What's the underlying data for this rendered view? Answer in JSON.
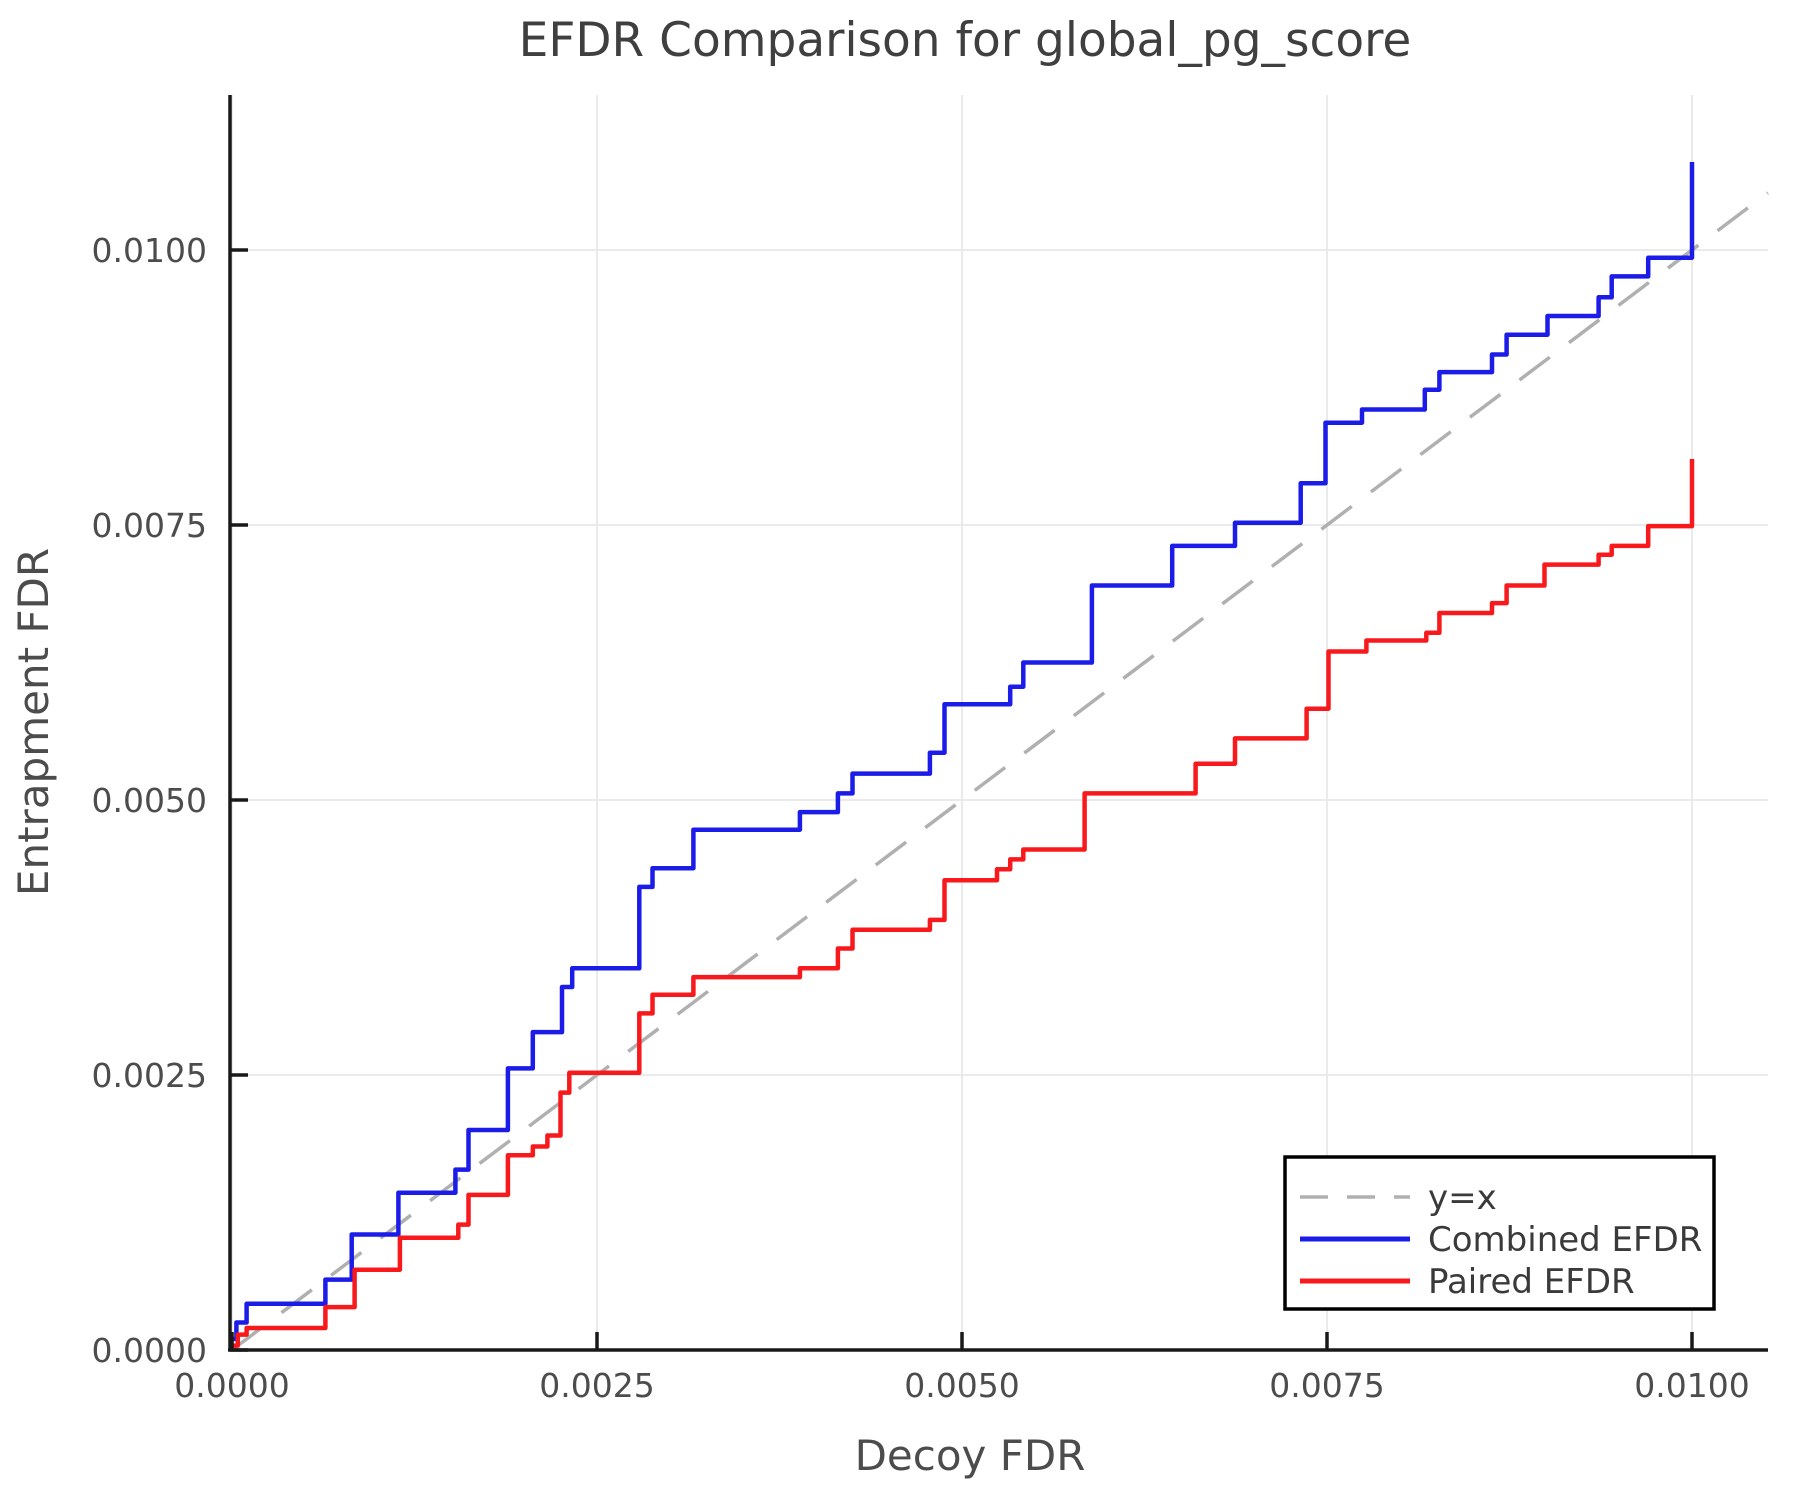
{
  "title": "EFDR Comparison for global_pg_score",
  "chart_data": {
    "type": "line",
    "subtype": "step-comparison",
    "title": "EFDR Comparison for global_pg_score",
    "xlabel": "Decoy FDR",
    "ylabel": "Entrapment FDR",
    "xlim": [
      0.0,
      0.01052
    ],
    "ylim": [
      0.0,
      0.0114
    ],
    "grid": "on",
    "x_ticks": {
      "values": [
        0.0,
        0.0025,
        0.005,
        0.0075,
        0.01
      ],
      "labels": [
        "0.0000",
        "0.0025",
        "0.0050",
        "0.0075",
        "0.0100"
      ]
    },
    "y_ticks": {
      "values": [
        0.0,
        0.0025,
        0.005,
        0.0075,
        0.01
      ],
      "labels": [
        "0.0000",
        "0.0025",
        "0.0050",
        "0.0075",
        "0.0100"
      ]
    },
    "legend": {
      "position": "lower right",
      "entries": [
        "y=x",
        "Combined EFDR",
        "Paired EFDR"
      ]
    },
    "colors": {
      "identity": "#b0b0b0",
      "combined": "#1c1ce8",
      "paired": "#f8191d",
      "grid": "#eaeaea",
      "axis": "#191919"
    },
    "series": [
      {
        "name": "y=x",
        "style": "dashed",
        "color": "#b0b0b0",
        "line": [
          [
            0.0,
            0.0
          ],
          [
            0.01052,
            0.01052
          ]
        ]
      },
      {
        "name": "Combined EFDR",
        "style": "step",
        "color": "#1c1ce8",
        "step_points": [
          [
            0.0,
            0.0001
          ],
          [
            3e-05,
            0.00025
          ],
          [
            0.0001,
            0.00042
          ],
          [
            0.00064,
            0.00064
          ],
          [
            0.00082,
            0.00105
          ],
          [
            0.00114,
            0.00143
          ],
          [
            0.00153,
            0.00164
          ],
          [
            0.00162,
            0.002
          ],
          [
            0.00189,
            0.00256
          ],
          [
            0.00206,
            0.00289
          ],
          [
            0.00226,
            0.0033
          ],
          [
            0.00233,
            0.00347
          ],
          [
            0.00279,
            0.00421
          ],
          [
            0.00288,
            0.00438
          ],
          [
            0.00316,
            0.00473
          ],
          [
            0.00389,
            0.00489
          ],
          [
            0.00415,
            0.00506
          ],
          [
            0.00425,
            0.00524
          ],
          [
            0.00478,
            0.00543
          ],
          [
            0.00488,
            0.00587
          ],
          [
            0.00533,
            0.00603
          ],
          [
            0.00542,
            0.00625
          ],
          [
            0.00589,
            0.00695
          ],
          [
            0.00644,
            0.00731
          ],
          [
            0.00687,
            0.00752
          ],
          [
            0.00732,
            0.00788
          ],
          [
            0.00749,
            0.00843
          ],
          [
            0.00774,
            0.00855
          ],
          [
            0.00817,
            0.00873
          ],
          [
            0.00827,
            0.00889
          ],
          [
            0.00863,
            0.00905
          ],
          [
            0.00873,
            0.00923
          ],
          [
            0.00901,
            0.0094
          ],
          [
            0.00936,
            0.00957
          ],
          [
            0.00945,
            0.00976
          ],
          [
            0.0097,
            0.00993
          ],
          [
            0.01,
            0.0108
          ]
        ]
      },
      {
        "name": "Paired EFDR",
        "style": "step",
        "color": "#f8191d",
        "step_points": [
          [
            0.0,
            4e-05
          ],
          [
            4e-05,
            0.00014
          ],
          [
            0.0001,
            0.0002
          ],
          [
            0.00064,
            0.00039
          ],
          [
            0.00084,
            0.00073
          ],
          [
            0.00115,
            0.00102
          ],
          [
            0.00155,
            0.00114
          ],
          [
            0.00162,
            0.00141
          ],
          [
            0.00189,
            0.00177
          ],
          [
            0.00206,
            0.00185
          ],
          [
            0.00216,
            0.00195
          ],
          [
            0.00225,
            0.00234
          ],
          [
            0.00231,
            0.00252
          ],
          [
            0.00279,
            0.00306
          ],
          [
            0.00288,
            0.00323
          ],
          [
            0.00316,
            0.00339
          ],
          [
            0.00389,
            0.00347
          ],
          [
            0.00415,
            0.00365
          ],
          [
            0.00425,
            0.00382
          ],
          [
            0.00478,
            0.00391
          ],
          [
            0.00488,
            0.00427
          ],
          [
            0.00524,
            0.00437
          ],
          [
            0.00533,
            0.00446
          ],
          [
            0.00542,
            0.00455
          ],
          [
            0.00584,
            0.00506
          ],
          [
            0.0066,
            0.00533
          ],
          [
            0.00687,
            0.00556
          ],
          [
            0.00736,
            0.00583
          ],
          [
            0.00751,
            0.00635
          ],
          [
            0.00777,
            0.00645
          ],
          [
            0.00818,
            0.00652
          ],
          [
            0.00827,
            0.0067
          ],
          [
            0.00863,
            0.00679
          ],
          [
            0.00873,
            0.00695
          ],
          [
            0.00899,
            0.00714
          ],
          [
            0.00936,
            0.00723
          ],
          [
            0.00945,
            0.00731
          ],
          [
            0.0097,
            0.00749
          ],
          [
            0.01,
            0.0081
          ]
        ]
      }
    ]
  }
}
